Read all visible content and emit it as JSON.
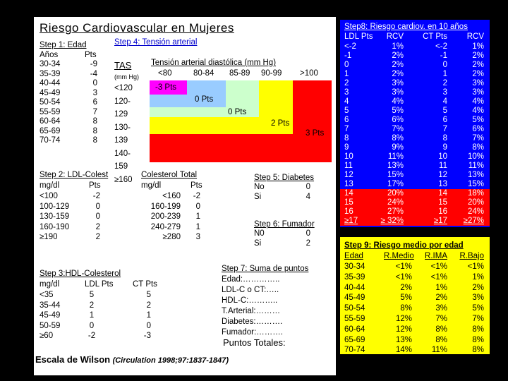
{
  "title": "Riesgo Cardiovascular en Mujeres",
  "edad": {
    "heading": "Step 1: Edad",
    "col_headers": [
      "Años",
      "Pts"
    ],
    "rows": [
      [
        "30-34",
        "-9"
      ],
      [
        "35-39",
        "-4"
      ],
      [
        "40-44",
        "0"
      ],
      [
        "45-49",
        "3"
      ],
      [
        "50-54",
        "6"
      ],
      [
        "55-59",
        "7"
      ],
      [
        "60-64",
        "8"
      ],
      [
        "65-69",
        "8"
      ],
      [
        "70-74",
        "8"
      ]
    ]
  },
  "tension": {
    "heading": "Step 4: Tensión arterial",
    "tas_label": "TAS",
    "tas_unit": "(mm Hg)",
    "diastolic_label": "Tensión arterial diastólica (mm Hg)",
    "diastolic_cols": [
      "<80",
      "80-84",
      "85-89",
      "90-99",
      ">100"
    ],
    "tas_rows": [
      "<120",
      "120-",
      "129",
      "130-",
      "139",
      "140-",
      "159",
      "≥160"
    ],
    "pts": [
      "-3 Pts",
      "0 Pts",
      "0 Pts",
      "2 Pts",
      "3 Pts"
    ],
    "colors": [
      "#ff00ff",
      "#99ccff",
      "#ccffcc",
      "#ffff00",
      "#ff0000"
    ]
  },
  "ldl": {
    "heading": "Step 2: LDL-Colest",
    "col_headers": [
      "mg/dl",
      "Pts"
    ],
    "rows": [
      [
        "<100",
        "-2"
      ],
      [
        "100-129",
        "0"
      ],
      [
        "130-159",
        "0"
      ],
      [
        "160-190",
        "2"
      ],
      [
        "≥190",
        "2"
      ]
    ]
  },
  "colesterol": {
    "heading": "Colesterol Total",
    "col_headers": [
      "mg/dl",
      "Pts"
    ],
    "rows": [
      [
        "<160",
        "-2"
      ],
      [
        "160-199",
        "0"
      ],
      [
        "200-239",
        "1"
      ],
      [
        "240-279",
        "1"
      ],
      [
        "≥280",
        "3"
      ]
    ]
  },
  "hdl": {
    "heading": "Step 3:HDL-Colesterol",
    "col_headers": [
      "mg/dl",
      "LDL Pts",
      "CT Pts"
    ],
    "rows": [
      [
        "<35",
        "5",
        "5"
      ],
      [
        "35-44",
        "2",
        "2"
      ],
      [
        "45-49",
        "1",
        "1"
      ],
      [
        "50-59",
        "0",
        "0"
      ],
      [
        "≥60",
        "-2",
        "-3"
      ]
    ]
  },
  "diabetes": {
    "heading": "Step 5: Diabetes",
    "rows": [
      [
        "No",
        "0"
      ],
      [
        "Si",
        "4"
      ]
    ]
  },
  "fumador": {
    "heading": "Step 6: Fumador",
    "rows": [
      [
        "N0",
        "0"
      ],
      [
        "Si",
        "2"
      ]
    ]
  },
  "suma": {
    "heading": "Step 7: Suma de puntos",
    "lines": [
      "Edad:…………..",
      "LDL-C o CT:…..",
      "HDL-C:………..",
      "T.Arterial:………",
      "Diabetes:……….",
      "Fumador:………."
    ],
    "total": "Puntos Totales:"
  },
  "footer": {
    "main": "Escala de Wilson",
    "cite": "(Circulation 1998;97:1837-1847)"
  },
  "riesgo": {
    "heading": "Step8: Riesgo cardiov. en 10 años",
    "col_headers": [
      "LDL Pts",
      "RCV",
      "CT Pts",
      "RCV"
    ],
    "rows": [
      [
        "<-2",
        "1%",
        "<-2",
        "1%"
      ],
      [
        "-1",
        "2%",
        "-1",
        "2%"
      ],
      [
        "0",
        "2%",
        "0",
        "2%"
      ],
      [
        "1",
        "2%",
        "1",
        "2%"
      ],
      [
        "2",
        "3%",
        "2",
        "3%"
      ],
      [
        "3",
        "3%",
        "3",
        "3%"
      ],
      [
        "4",
        "4%",
        "4",
        "4%"
      ],
      [
        "5",
        "5%",
        "5",
        "4%"
      ],
      [
        "6",
        "6%",
        "6",
        "5%"
      ],
      [
        "7",
        "7%",
        "7",
        "6%"
      ],
      [
        "8",
        "8%",
        "8",
        "7%"
      ],
      [
        "9",
        "9%",
        "9",
        "8%"
      ],
      [
        "10",
        "11%",
        "10",
        "10%"
      ],
      [
        "11",
        "13%",
        "11",
        "11%"
      ],
      [
        "12",
        "15%",
        "12",
        "13%"
      ],
      [
        "13",
        "17%",
        "13",
        "15%"
      ],
      [
        "14",
        "20%",
        "14",
        "18%"
      ],
      [
        "15",
        "24%",
        "15",
        "20%"
      ],
      [
        "16",
        "27%",
        "16",
        "24%"
      ],
      [
        "≥17",
        "≥ 32%",
        "≥17",
        "≥27%"
      ]
    ],
    "highlight_from": 16,
    "highlight_color": "#ff0000",
    "panel_color": "#0000ff"
  },
  "medio": {
    "heading": "Step 9: Riesgo medio por edad",
    "col_headers": [
      "Edad",
      "R.Medio",
      "R.IMA",
      "R.Bajo"
    ],
    "rows": [
      [
        "30-34",
        "<1%",
        "<1%",
        "<1%"
      ],
      [
        "35-39",
        "<1%",
        "<1%",
        "1%"
      ],
      [
        "40-44",
        "2%",
        "1%",
        "2%"
      ],
      [
        "45-49",
        "5%",
        "2%",
        "3%"
      ],
      [
        "50-54",
        "8%",
        "3%",
        "5%"
      ],
      [
        "55-59",
        "12%",
        "7%",
        "7%"
      ],
      [
        "60-64",
        "12%",
        "8%",
        "8%"
      ],
      [
        "65-69",
        "13%",
        "8%",
        "8%"
      ],
      [
        "70-74",
        "14%",
        "11%",
        "8%"
      ]
    ],
    "panel_color": "#ffff00"
  }
}
